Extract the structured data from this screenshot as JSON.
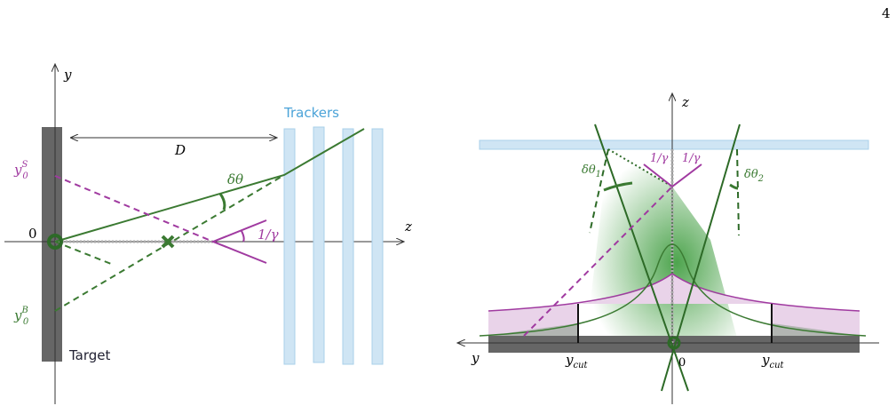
{
  "page_number": "4",
  "left": {
    "y_axis": "y",
    "z_axis": "z",
    "trackers": "Trackers",
    "distance": "D",
    "signal_origin": {
      "base": "y",
      "sub": "0",
      "sup": "S"
    },
    "background_origin": {
      "base": "y",
      "sub": "0",
      "sup": "B"
    },
    "angle": "δθ",
    "origin": "0",
    "cone": "1/γ",
    "target": "Target"
  },
  "right": {
    "z_axis": "z",
    "y_axis": "y",
    "cone_left": "1/γ",
    "cone_right": "1/γ",
    "angle_1": {
      "base": "δθ",
      "sub": "1"
    },
    "angle_2": {
      "base": "δθ",
      "sub": "2"
    },
    "cut_left": {
      "base": "y",
      "sub": "cut"
    },
    "origin": "0",
    "cut_right": {
      "base": "y",
      "sub": "cut"
    }
  }
}
